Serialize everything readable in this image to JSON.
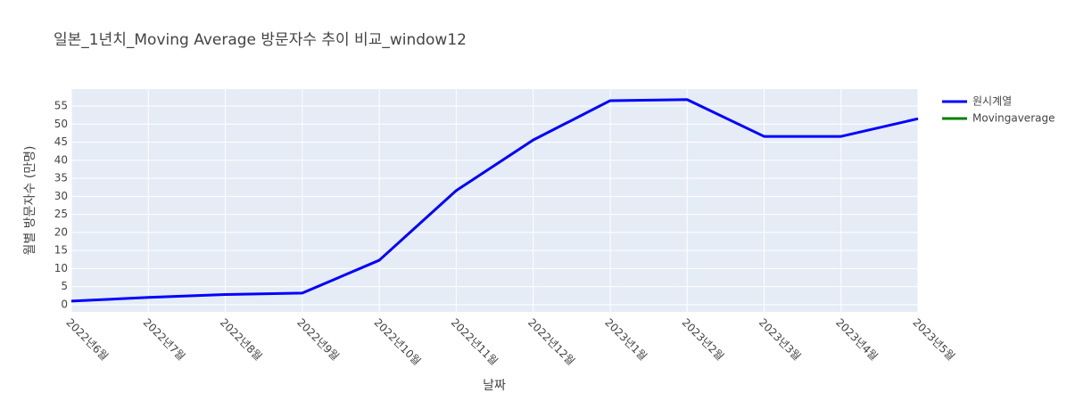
{
  "chart_data": {
    "type": "line",
    "title": "일본_1년치_Moving Average 방문자수 추이 비교_window12",
    "x_label": "날짜",
    "y_label": "월별 방문자수 (만명)",
    "categories": [
      "2022년6월",
      "2022년7월",
      "2022년8월",
      "2022년9월",
      "2022년10월",
      "2022년11월",
      "2022년12월",
      "2023년1월",
      "2023년2월",
      "2023년3월",
      "2023년4월",
      "2023년5월"
    ],
    "series": [
      {
        "name": "원시계열",
        "color": "#0000ff",
        "values": [
          1.0,
          2.0,
          2.8,
          3.2,
          12.3,
          31.6,
          45.6,
          56.5,
          56.8,
          46.6,
          46.6,
          51.5
        ]
      },
      {
        "name": "Movingaverage",
        "color": "#008000",
        "values": [
          null,
          null,
          null,
          null,
          null,
          null,
          null,
          null,
          null,
          null,
          null,
          null
        ]
      }
    ],
    "ylim": [
      -2,
      59.7
    ],
    "yticks": [
      0,
      5,
      10,
      15,
      20,
      25,
      30,
      35,
      40,
      45,
      50,
      55
    ],
    "grid": true,
    "legend": "top-right"
  }
}
